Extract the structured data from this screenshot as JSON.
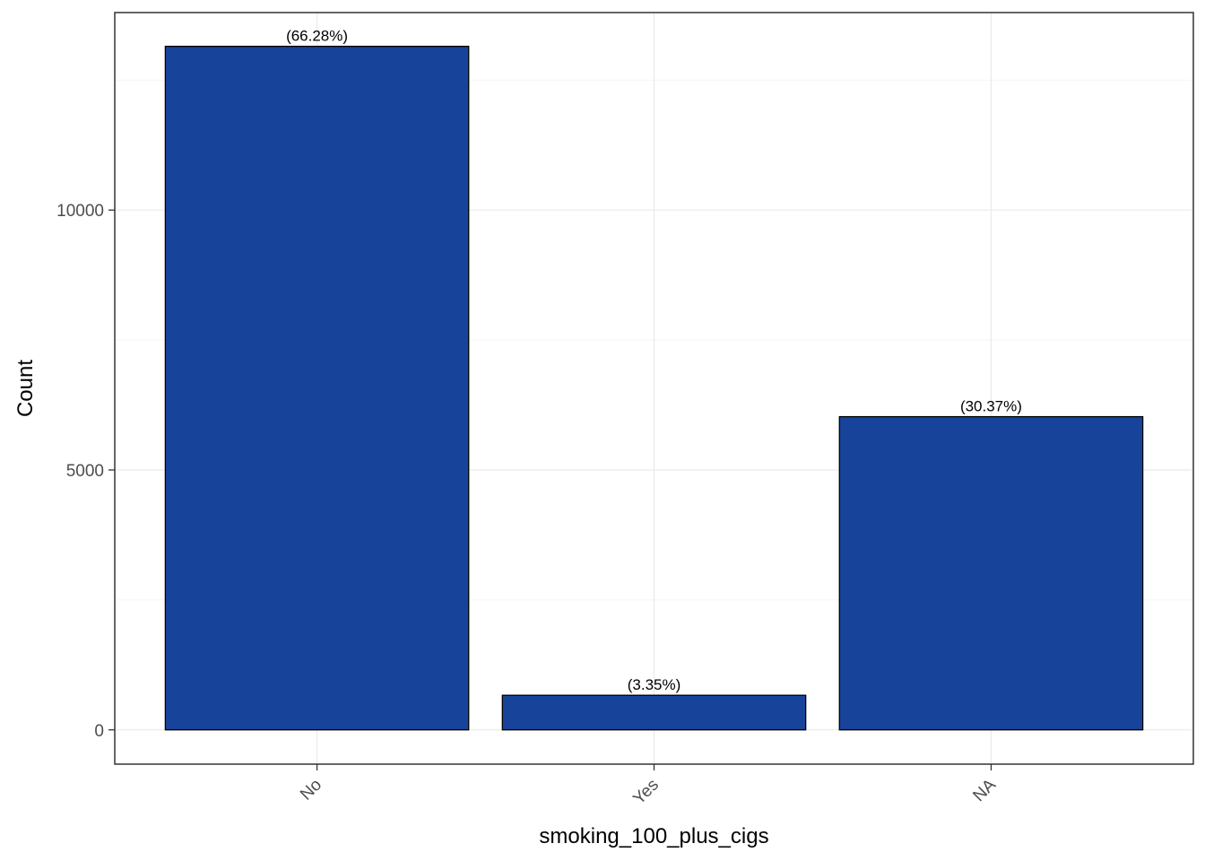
{
  "chart_data": {
    "type": "bar",
    "title": "",
    "xlabel": "smoking_100_plus_cigs",
    "ylabel": "Count",
    "categories": [
      "No",
      "Yes",
      "NA"
    ],
    "values": [
      13150,
      665,
      6025
    ],
    "data_labels": [
      "(66.28%)",
      "(3.35%)",
      "(30.37%)"
    ],
    "yticks": [
      0,
      5000,
      10000
    ],
    "ytick_labels": [
      "0",
      "5000",
      "10000"
    ],
    "ylim": [
      -660,
      13800
    ],
    "grid": true,
    "legend": "none",
    "colors": {
      "bar_fill": "#17449a",
      "bar_stroke": "#000000",
      "grid_major": "#ebebeb",
      "grid_minor": "#f4f4f4",
      "panel_border": "#333333"
    }
  }
}
